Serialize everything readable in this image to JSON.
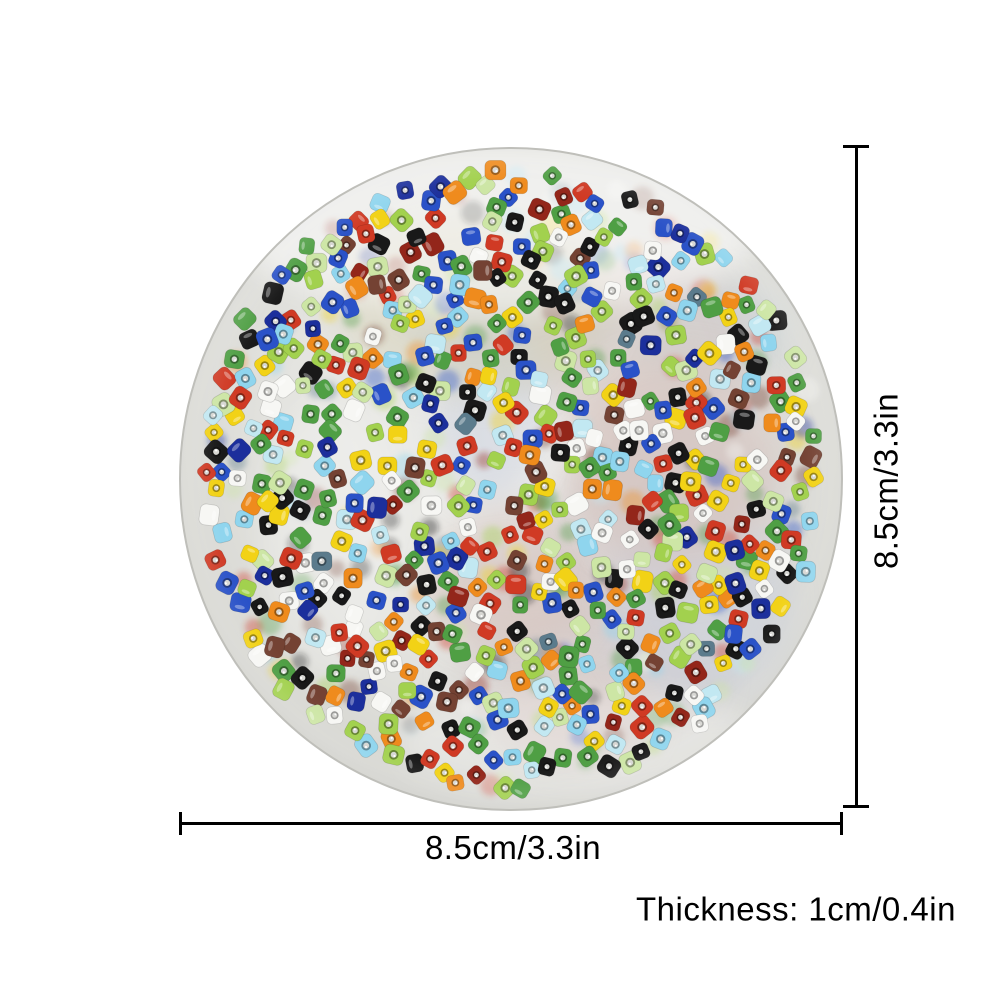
{
  "annotations": {
    "diameter_label": "8.5cm/3.3in",
    "height_label": "8.5cm/3.3in",
    "thickness_label": "Thickness: 1cm/0.4in",
    "line_color": "#000000",
    "text_color": "#000000"
  },
  "disc": {
    "description": "translucent resin disc filled with multicolor glass seed beads",
    "base_color": "#e4e4e0",
    "edge_color": "#bfbfba",
    "seed": 20,
    "top_bead_count": 600,
    "under_bead_count": 190,
    "bead_palette": [
      {
        "name": "green",
        "hex": "#4f9f44",
        "weight": 13
      },
      {
        "name": "lime",
        "hex": "#a2d14e",
        "weight": 8
      },
      {
        "name": "pale-green",
        "hex": "#cde6a5",
        "weight": 6
      },
      {
        "name": "yellow",
        "hex": "#f2d216",
        "weight": 8
      },
      {
        "name": "orange",
        "hex": "#ef8b1d",
        "weight": 8
      },
      {
        "name": "red",
        "hex": "#d03a24",
        "weight": 8
      },
      {
        "name": "dark-red",
        "hex": "#93261a",
        "weight": 4
      },
      {
        "name": "brown",
        "hex": "#744233",
        "weight": 4
      },
      {
        "name": "blue",
        "hex": "#2a52c8",
        "weight": 10
      },
      {
        "name": "navy",
        "hex": "#1c2f9c",
        "weight": 4
      },
      {
        "name": "sky-blue",
        "hex": "#8fd5ee",
        "weight": 7
      },
      {
        "name": "pale-blue",
        "hex": "#c2e8f2",
        "weight": 4
      },
      {
        "name": "black",
        "hex": "#191919",
        "weight": 9
      },
      {
        "name": "white",
        "hex": "#f7f7f4",
        "weight": 9
      },
      {
        "name": "steel-blue",
        "hex": "#5b7b8c",
        "weight": 2
      }
    ],
    "haze_colors": [
      "#ccd6c0",
      "#d6c5c0",
      "#c3cfd8",
      "#d6d0b6",
      "#c8cedd",
      "#d2c9c9"
    ]
  }
}
